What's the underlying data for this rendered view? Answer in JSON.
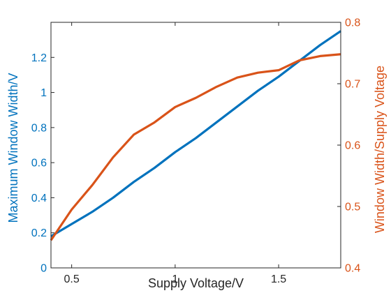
{
  "chart_data": {
    "type": "line",
    "xlabel": "Supply Voltage/V",
    "ylabel_left": "Maximum Window Width/V",
    "ylabel_right": "Window Width/Supply Voltage",
    "xlim": [
      0.4,
      1.8
    ],
    "ylim_left": [
      0,
      1.4
    ],
    "ylim_right": [
      0.4,
      0.8
    ],
    "x_ticks": [
      0.5,
      1,
      1.5
    ],
    "x_tick_labels": [
      "0.5",
      "1",
      "1.5"
    ],
    "y_left_ticks": [
      0,
      0.2,
      0.4,
      0.6,
      0.8,
      1,
      1.2
    ],
    "y_left_tick_labels": [
      "0",
      "0.2",
      "0.4",
      "0.6",
      "0.8",
      "1",
      "1.2"
    ],
    "y_right_ticks": [
      0.4,
      0.5,
      0.6,
      0.7,
      0.8
    ],
    "y_right_tick_labels": [
      "0.4",
      "0.5",
      "0.6",
      "0.7",
      "0.8"
    ],
    "grid": false,
    "x": [
      0.4,
      0.5,
      0.6,
      0.7,
      0.8,
      0.9,
      1.0,
      1.1,
      1.2,
      1.3,
      1.4,
      1.5,
      1.6,
      1.7,
      1.8
    ],
    "series": [
      {
        "axis": "left",
        "color": "#0072bd",
        "values": [
          0.18,
          0.25,
          0.32,
          0.4,
          0.49,
          0.57,
          0.66,
          0.74,
          0.83,
          0.92,
          1.01,
          1.09,
          1.18,
          1.27,
          1.35
        ]
      },
      {
        "axis": "right",
        "color": "#d95319",
        "values": [
          0.445,
          0.495,
          0.535,
          0.58,
          0.617,
          0.637,
          0.662,
          0.677,
          0.695,
          0.71,
          0.718,
          0.722,
          0.738,
          0.745,
          0.748
        ]
      }
    ]
  }
}
